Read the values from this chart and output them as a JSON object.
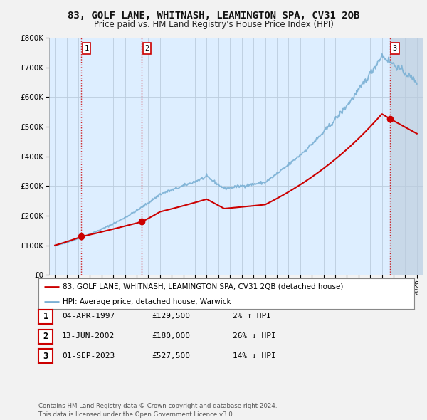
{
  "title": "83, GOLF LANE, WHITNASH, LEAMINGTON SPA, CV31 2QB",
  "subtitle": "Price paid vs. HM Land Registry's House Price Index (HPI)",
  "ylim": [
    0,
    800000
  ],
  "yticks": [
    0,
    100000,
    200000,
    300000,
    400000,
    500000,
    600000,
    700000,
    800000
  ],
  "ytick_labels": [
    "£0",
    "£100K",
    "£200K",
    "£300K",
    "£400K",
    "£500K",
    "£600K",
    "£700K",
    "£800K"
  ],
  "xlim_min": 1994.5,
  "xlim_max": 2026.5,
  "sales": [
    {
      "date_num": 1997.25,
      "price": 129500,
      "label": "1"
    },
    {
      "date_num": 2002.45,
      "price": 180000,
      "label": "2"
    },
    {
      "date_num": 2023.67,
      "price": 527500,
      "label": "3"
    }
  ],
  "sale_color": "#cc0000",
  "hpi_color": "#7ab0d4",
  "background_color": "#ddeeff",
  "grid_color": "#bbccdd",
  "shade_color": "#c8d8e8",
  "fig_bg": "#f2f2f2",
  "table_rows": [
    {
      "num": "1",
      "date": "04-APR-1997",
      "price": "£129,500",
      "hpi": "2% ↑ HPI"
    },
    {
      "num": "2",
      "date": "13-JUN-2002",
      "price": "£180,000",
      "hpi": "26% ↓ HPI"
    },
    {
      "num": "3",
      "date": "01-SEP-2023",
      "price": "£527,500",
      "hpi": "14% ↓ HPI"
    }
  ],
  "footer": "Contains HM Land Registry data © Crown copyright and database right 2024.\nThis data is licensed under the Open Government Licence v3.0.",
  "legend_entries": [
    "83, GOLF LANE, WHITNASH, LEAMINGTON SPA, CV31 2QB (detached house)",
    "HPI: Average price, detached house, Warwick"
  ]
}
